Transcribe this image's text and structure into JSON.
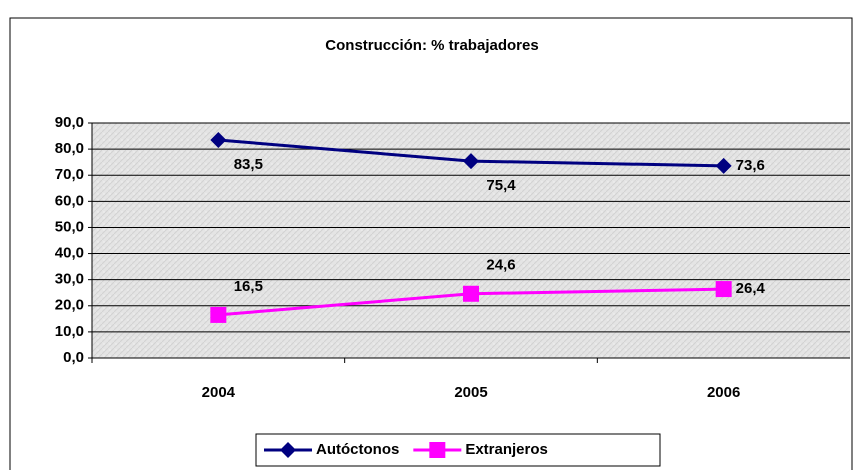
{
  "chart_data": {
    "type": "line",
    "title": "Construcción: % trabajadores",
    "categories": [
      "2004",
      "2005",
      "2006"
    ],
    "series": [
      {
        "name": "Autóctonos",
        "color": "#000080",
        "marker": "diamond",
        "values": [
          83.5,
          75.4,
          73.6
        ],
        "value_labels": [
          "83,5",
          "75,4",
          "73,6"
        ]
      },
      {
        "name": "Extranjeros",
        "color": "#ff00ff",
        "marker": "square",
        "values": [
          16.5,
          24.6,
          26.4
        ],
        "value_labels": [
          "16,5",
          "24,6",
          "26,4"
        ]
      }
    ],
    "ylim": [
      0,
      90
    ],
    "yticks": [
      {
        "value": 0,
        "label": "0,0"
      },
      {
        "value": 10,
        "label": "10,0"
      },
      {
        "value": 20,
        "label": "20,0"
      },
      {
        "value": 30,
        "label": "30,0"
      },
      {
        "value": 40,
        "label": "40,0"
      },
      {
        "value": 50,
        "label": "50,0"
      },
      {
        "value": 60,
        "label": "60,0"
      },
      {
        "value": 70,
        "label": "70,0"
      },
      {
        "value": 80,
        "label": "80,0"
      },
      {
        "value": 90,
        "label": "90,0"
      }
    ],
    "grid": true,
    "legend": "bottom"
  }
}
